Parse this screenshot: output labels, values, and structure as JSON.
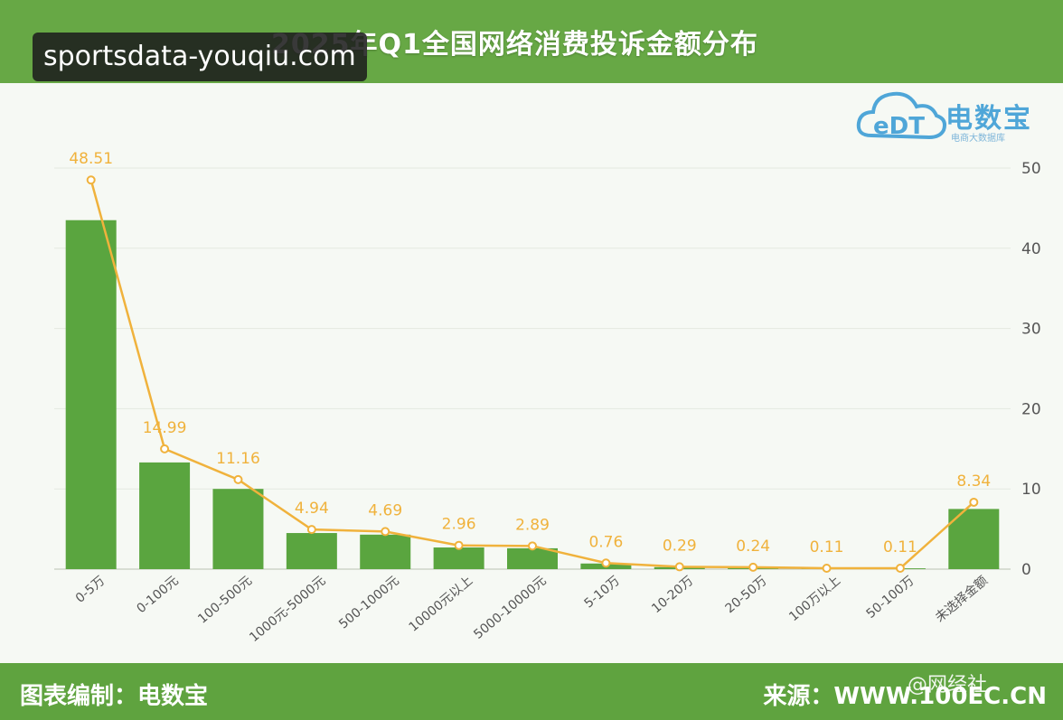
{
  "header": {
    "title": "2025年Q1全国网络消费投诉金额分布"
  },
  "watermark": {
    "text": "sportsdata-youqiu.com"
  },
  "logo": {
    "brand": "电数宝",
    "tagline": "电商大数据库",
    "mark_colors": [
      "#4fa6d8",
      "#8fc5e8"
    ]
  },
  "footer": {
    "credit": "图表编制：电数宝",
    "source": "来源：WWW.100EC.CN",
    "stamp": "@网经社"
  },
  "colors": {
    "bar": "#5aa53f",
    "line": "#f0b23c",
    "label": "#f0b23c",
    "axis_text": "#555555",
    "grid": "#e4e9e0"
  },
  "chart_data": {
    "type": "bar",
    "title": "2025年Q1全国网络消费投诉金额分布",
    "categories": [
      "0-5万",
      "0-100元",
      "100-500元",
      "1000元-5000元",
      "500-1000元",
      "10000元以上",
      "5000-10000元",
      "5-10万",
      "10-20万",
      "20-50万",
      "100万以上",
      "50-100万",
      "未选择金额"
    ],
    "series": [
      {
        "type": "bar",
        "values": [
          43.5,
          13.3,
          10.0,
          4.5,
          4.3,
          2.7,
          2.6,
          0.7,
          0.25,
          0.2,
          0.1,
          0.1,
          7.5
        ]
      },
      {
        "type": "line",
        "values": [
          48.51,
          14.99,
          11.16,
          4.94,
          4.69,
          2.96,
          2.89,
          0.76,
          0.29,
          0.24,
          0.11,
          0.11,
          8.34
        ]
      }
    ],
    "data_labels": [
      "48.51",
      "14.99",
      "11.16",
      "4.94",
      "4.69",
      "2.96",
      "2.89",
      "0.76",
      "0.29",
      "0.24",
      "0.11",
      "0.11",
      "8.34"
    ],
    "y_ticks": [
      "0",
      "10",
      "20",
      "30",
      "40",
      "50"
    ],
    "ylim": [
      0,
      50
    ],
    "y_axis_side": "right",
    "grid": true,
    "legend": "none"
  }
}
